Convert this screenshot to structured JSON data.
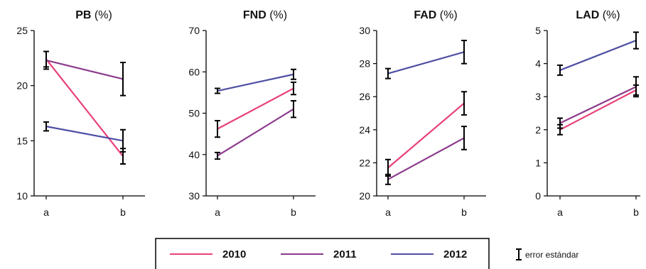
{
  "chart_data": [
    {
      "type": "line",
      "title_bold": "PB",
      "title_rest": " (%)",
      "categories": [
        "a",
        "b"
      ],
      "ylim": [
        10,
        25
      ],
      "yticks": [
        "10",
        "15",
        "20",
        "25"
      ],
      "series": [
        {
          "name": "2010",
          "values": [
            22.4,
            13.6
          ],
          "errors": [
            0.7,
            0.7
          ]
        },
        {
          "name": "2011",
          "values": [
            22.3,
            20.6
          ],
          "errors": [
            0.8,
            1.5
          ]
        },
        {
          "name": "2012",
          "values": [
            16.3,
            15.0
          ],
          "errors": [
            0.4,
            1.0
          ]
        }
      ]
    },
    {
      "type": "line",
      "title_bold": "FND",
      "title_rest": " (%)",
      "categories": [
        "a",
        "b"
      ],
      "ylim": [
        30,
        70
      ],
      "yticks": [
        "30",
        "40",
        "50",
        "60",
        "70"
      ],
      "series": [
        {
          "name": "2010",
          "values": [
            46.2,
            56.0
          ],
          "errors": [
            2.0,
            1.5
          ]
        },
        {
          "name": "2011",
          "values": [
            39.7,
            51.0
          ],
          "errors": [
            0.8,
            2.0
          ]
        },
        {
          "name": "2012",
          "values": [
            55.4,
            59.4
          ],
          "errors": [
            0.6,
            1.2
          ]
        }
      ]
    },
    {
      "type": "line",
      "title_bold": "FAD",
      "title_rest": " (%)",
      "categories": [
        "a",
        "b"
      ],
      "ylim": [
        20,
        30
      ],
      "yticks": [
        "20",
        "22",
        "24",
        "26",
        "28",
        "30"
      ],
      "series": [
        {
          "name": "2010",
          "values": [
            21.7,
            25.6
          ],
          "errors": [
            0.5,
            0.7
          ]
        },
        {
          "name": "2011",
          "values": [
            21.0,
            23.5
          ],
          "errors": [
            0.3,
            0.7
          ]
        },
        {
          "name": "2012",
          "values": [
            27.4,
            28.7
          ],
          "errors": [
            0.3,
            0.7
          ]
        }
      ]
    },
    {
      "type": "line",
      "title_bold": "LAD",
      "title_rest": " (%)",
      "categories": [
        "a",
        "b"
      ],
      "ylim": [
        0,
        5
      ],
      "yticks": [
        "0",
        "1",
        "2",
        "3",
        "4",
        "5"
      ],
      "series": [
        {
          "name": "2010",
          "values": [
            2.0,
            3.2
          ],
          "errors": [
            0.15,
            0.15
          ]
        },
        {
          "name": "2011",
          "values": [
            2.2,
            3.3
          ],
          "errors": [
            0.15,
            0.3
          ]
        },
        {
          "name": "2012",
          "values": [
            3.8,
            4.7
          ],
          "errors": [
            0.15,
            0.25
          ]
        }
      ]
    }
  ],
  "legend": {
    "entries": [
      {
        "label": "2010",
        "color": "#e8407a"
      },
      {
        "label": "2011",
        "color": "#8b3a8c"
      },
      {
        "label": "2012",
        "color": "#4d4fa3"
      }
    ],
    "error_note": "error estándar"
  },
  "colors": {
    "2010": "#e8407a",
    "2011": "#8b3a8c",
    "2012": "#4d4fa3",
    "axis": "#000000"
  }
}
